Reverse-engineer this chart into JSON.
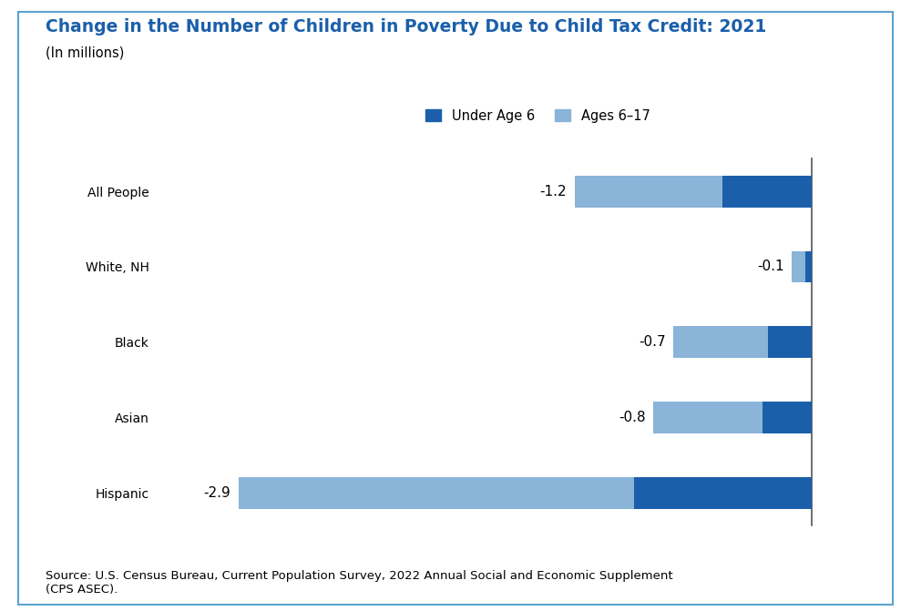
{
  "title": "Change in the Number of Children in Poverty Due to Child Tax Credit: 2021",
  "subtitle": "(In millions)",
  "categories": [
    "All People",
    "White, NH",
    "Black",
    "Asian",
    "Hispanic"
  ],
  "labels": [
    "-2.9",
    "-0.8",
    "-0.7",
    "-0.1",
    "-1.2"
  ],
  "under_age_6": [
    -0.9,
    -0.25,
    -0.22,
    -0.03,
    -0.45
  ],
  "ages_6_17": [
    -2.0,
    -0.55,
    -0.48,
    -0.07,
    -0.75
  ],
  "color_under_6": "#1b5faa",
  "color_ages_6_17": "#8ab4d8",
  "title_color": "#1b5faa",
  "source_text": "Source: U.S. Census Bureau, Current Population Survey, 2022 Annual Social and Economic Supplement\n(CPS ASEC).",
  "legend_labels": [
    "Under Age 6",
    "Ages 6–17"
  ],
  "xlim": [
    -3.3,
    0.18
  ],
  "background_color": "#ffffff",
  "axis_line_color": "#555555",
  "bar_height": 0.42,
  "title_fontsize": 13.5,
  "subtitle_fontsize": 10.5,
  "label_fontsize": 11,
  "legend_fontsize": 10.5,
  "source_fontsize": 9.5,
  "ytick_fontsize": 11
}
